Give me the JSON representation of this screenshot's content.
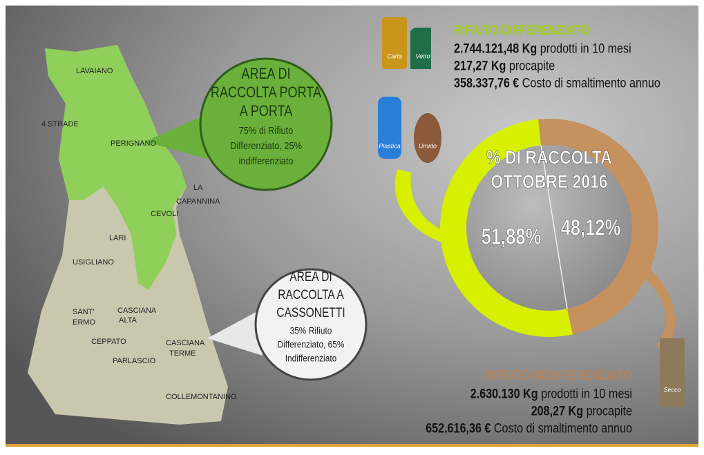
{
  "map": {
    "towns": [
      "LAVAIANO",
      "4 STRADE",
      "PERIGNANO",
      "LA",
      "CAPANNINA",
      "CEVOLI",
      "LARI",
      "USIGLIANO",
      "SANT'",
      "ERMO",
      "CASCIANA",
      "ALTA",
      "CEPPATO",
      "CASCIANA",
      "TERME",
      "PARLASCIO",
      "COLLEMONTANINO"
    ]
  },
  "callouts": [
    {
      "title": [
        "AREA DI",
        "RACCOLTA PORTA",
        "A PORTA"
      ],
      "text": [
        "75% di Rifiuto",
        "Differenziato, 25%",
        "indifferenziato"
      ]
    },
    {
      "title": [
        "AREA DI",
        "RACCOLTA A",
        "CASSONETTI"
      ],
      "text": [
        "35% Rifiuto",
        "Differenziato, 65%",
        "Indifferenziato"
      ]
    }
  ],
  "bins": [
    "Carta",
    "Vetro",
    "Plastica",
    "Umido",
    "Secco"
  ],
  "differenziato": {
    "heading": "RIFIUTO DIFFERENZIATO",
    "lines": [
      {
        "strong": "2.744.121,48 Kg",
        "text": " prodotti in 10 mesi"
      },
      {
        "strong": "217,27 Kg",
        "text": " procapite"
      },
      {
        "strong": "358.337,76 €",
        "text": " Costo di smaltimento annuo"
      }
    ]
  },
  "indifferenziato": {
    "heading": "RIFIUTO INDIFFERENZIATO",
    "lines": [
      {
        "strong": "2.630.130 Kg",
        "text": " prodotti in 10 mesi"
      },
      {
        "strong": "208,27 Kg",
        "text": " procapite"
      },
      {
        "strong": "652.616,36 €",
        "text": " Costo di smaltimento annuo"
      }
    ]
  },
  "donut": {
    "title": [
      "% DI RACCOLTA",
      "OTTOBRE 2016"
    ],
    "values": [
      51.88,
      48.12
    ],
    "value_labels": [
      "51,88%",
      "48,12%"
    ],
    "colors": [
      "#d6f000",
      "#c4915f"
    ]
  }
}
